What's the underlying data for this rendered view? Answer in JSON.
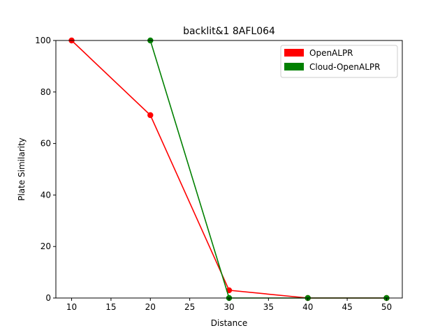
{
  "chart_data": {
    "type": "line",
    "title": "backlit&1 8AFL064",
    "xlabel": "Distance",
    "ylabel": "Plate Similarity",
    "xlim": [
      8,
      52
    ],
    "ylim": [
      0,
      100
    ],
    "xticks": [
      10,
      15,
      20,
      25,
      30,
      35,
      40,
      45,
      50
    ],
    "yticks": [
      0,
      20,
      40,
      60,
      80,
      100
    ],
    "grid": false,
    "legend_position": "top-right",
    "series": [
      {
        "name": "OpenALPR",
        "color": "#ff0000",
        "x": [
          10,
          20,
          30,
          40,
          50
        ],
        "y": [
          100,
          71,
          3,
          0,
          0
        ]
      },
      {
        "name": "Cloud-OpenALPR",
        "color": "#008000",
        "x": [
          20,
          30,
          40,
          50
        ],
        "y": [
          100,
          0,
          0,
          0
        ]
      }
    ]
  }
}
